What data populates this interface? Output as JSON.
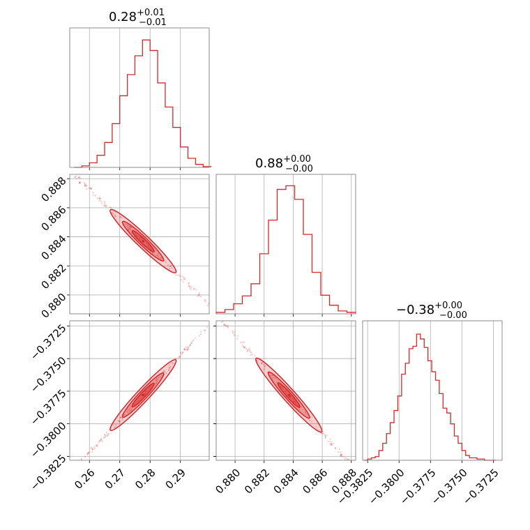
{
  "chart_data": [
    {
      "type": "histogram",
      "panel": "diag-0",
      "title": {
        "base": "0.28",
        "sup": "+0.01",
        "sub": "−0.01"
      },
      "color": "#d62728",
      "bin_edges": [
        0.255,
        0.2575,
        0.26,
        0.2625,
        0.265,
        0.2675,
        0.27,
        0.2725,
        0.275,
        0.2775,
        0.28,
        0.2825,
        0.285,
        0.2875,
        0.29,
        0.2925,
        0.295,
        0.2975,
        0.3
      ],
      "counts": [
        0,
        2,
        6,
        16,
        33,
        58,
        95,
        123,
        148,
        169,
        155,
        112,
        80,
        53,
        27,
        12,
        4,
        1
      ],
      "xlim": [
        0.2535,
        0.2995
      ],
      "xticks": [
        0.26,
        0.27,
        0.28,
        0.29
      ],
      "ylim": [
        0,
        185
      ]
    },
    {
      "type": "histogram",
      "panel": "diag-1",
      "title": {
        "base": "0.88",
        "sup": "+0.00",
        "sub": "−0.00"
      },
      "color": "#d62728",
      "bin_edges": [
        0.8787,
        0.8793,
        0.8799,
        0.8805,
        0.8811,
        0.8817,
        0.8823,
        0.8829,
        0.8835,
        0.8841,
        0.8847,
        0.8853,
        0.8859,
        0.8865,
        0.8871,
        0.8877,
        0.8883
      ],
      "counts": [
        2,
        6,
        14,
        25,
        42,
        84,
        131,
        174,
        179,
        160,
        111,
        58,
        26,
        12,
        4,
        2
      ],
      "xlim": [
        0.8787,
        0.8883
      ],
      "xticks": [
        0.88,
        0.882,
        0.884,
        0.886,
        0.888
      ],
      "xticklabels": [
        "0.880",
        "0.882",
        "0.884",
        "0.886",
        "0.888"
      ],
      "ylim": [
        0,
        195
      ]
    },
    {
      "type": "histogram",
      "panel": "diag-2",
      "title": {
        "base": "−0.38",
        "sup": "+0.00",
        "sub": "−0.00"
      },
      "color": "#d62728",
      "bin_edges": [
        -0.3828,
        -0.3825,
        -0.3822,
        -0.3819,
        -0.3816,
        -0.3813,
        -0.381,
        -0.3807,
        -0.3804,
        -0.3801,
        -0.3798,
        -0.3795,
        -0.3792,
        -0.3789,
        -0.3786,
        -0.3783,
        -0.378,
        -0.3777,
        -0.3774,
        -0.3771,
        -0.3768,
        -0.3765,
        -0.3762,
        -0.3759,
        -0.3756,
        -0.3753,
        -0.375,
        -0.3747,
        -0.3744,
        -0.3741,
        -0.3738,
        -0.3735,
        -0.3732,
        -0.3729,
        -0.3726,
        -0.3723
      ],
      "counts": [
        0,
        1,
        2,
        3,
        8,
        14,
        22,
        31,
        41,
        53,
        71,
        80,
        92,
        94,
        104,
        100,
        93,
        82,
        73,
        66,
        55,
        43,
        39,
        30,
        20,
        14,
        8,
        4,
        2,
        2,
        1,
        1,
        0,
        0,
        0
      ],
      "xlim": [
        -0.3829,
        -0.3718
      ],
      "xticks": [
        -0.3825,
        -0.38,
        -0.3775,
        -0.375,
        -0.3725
      ],
      "xticklabels": [
        "−0.3825",
        "−0.3800",
        "−0.3775",
        "−0.3750",
        "−0.3725"
      ],
      "ylim": [
        0,
        115
      ]
    },
    {
      "type": "2d-density",
      "panel": "pair-1-0",
      "x_param": 0,
      "y_param": 1,
      "color": "#d62728",
      "xlim": [
        0.2535,
        0.2995
      ],
      "ylim": [
        0.8787,
        0.8883
      ],
      "xticks": [
        0.26,
        0.27,
        0.28,
        0.29
      ],
      "yticks": [
        0.88,
        0.882,
        0.884,
        0.886,
        0.888
      ],
      "yticklabels": [
        "0.880",
        "0.882",
        "0.884",
        "0.886",
        "0.888"
      ],
      "center": [
        0.2777,
        0.8837
      ],
      "slope": -0.2,
      "half_length": 0.0225,
      "spread": 0.0002
    },
    {
      "type": "2d-density",
      "panel": "pair-2-0",
      "x_param": 0,
      "y_param": 2,
      "color": "#d62728",
      "xlim": [
        0.2535,
        0.2995
      ],
      "ylim": [
        -0.3828,
        -0.3721
      ],
      "xticks": [
        0.26,
        0.27,
        0.28,
        0.29
      ],
      "xticklabels": [
        "0.26",
        "0.27",
        "0.28",
        "0.29"
      ],
      "yticks": [
        -0.3825,
        -0.38,
        -0.3775,
        -0.375,
        -0.3725
      ],
      "yticklabels": [
        "−0.3825",
        "−0.3800",
        "−0.3775",
        "−0.3750",
        "−0.3725"
      ],
      "center": [
        0.2777,
        -0.3778
      ],
      "slope": 0.25,
      "half_length": 0.0225,
      "spread": 0.00022
    },
    {
      "type": "2d-density",
      "panel": "pair-2-1",
      "x_param": 1,
      "y_param": 2,
      "color": "#d62728",
      "xlim": [
        0.8787,
        0.8883
      ],
      "ylim": [
        -0.3828,
        -0.3721
      ],
      "xticks": [
        0.88,
        0.882,
        0.884,
        0.886,
        0.888
      ],
      "xticklabels": [
        "0.880",
        "0.882",
        "0.884",
        "0.886",
        "0.888"
      ],
      "yticks": [
        -0.3825,
        -0.38,
        -0.3775,
        -0.375,
        -0.3725
      ],
      "center": [
        0.8837,
        -0.3778
      ],
      "slope": -1.25,
      "half_length": 0.0047,
      "spread": 0.00022
    }
  ]
}
